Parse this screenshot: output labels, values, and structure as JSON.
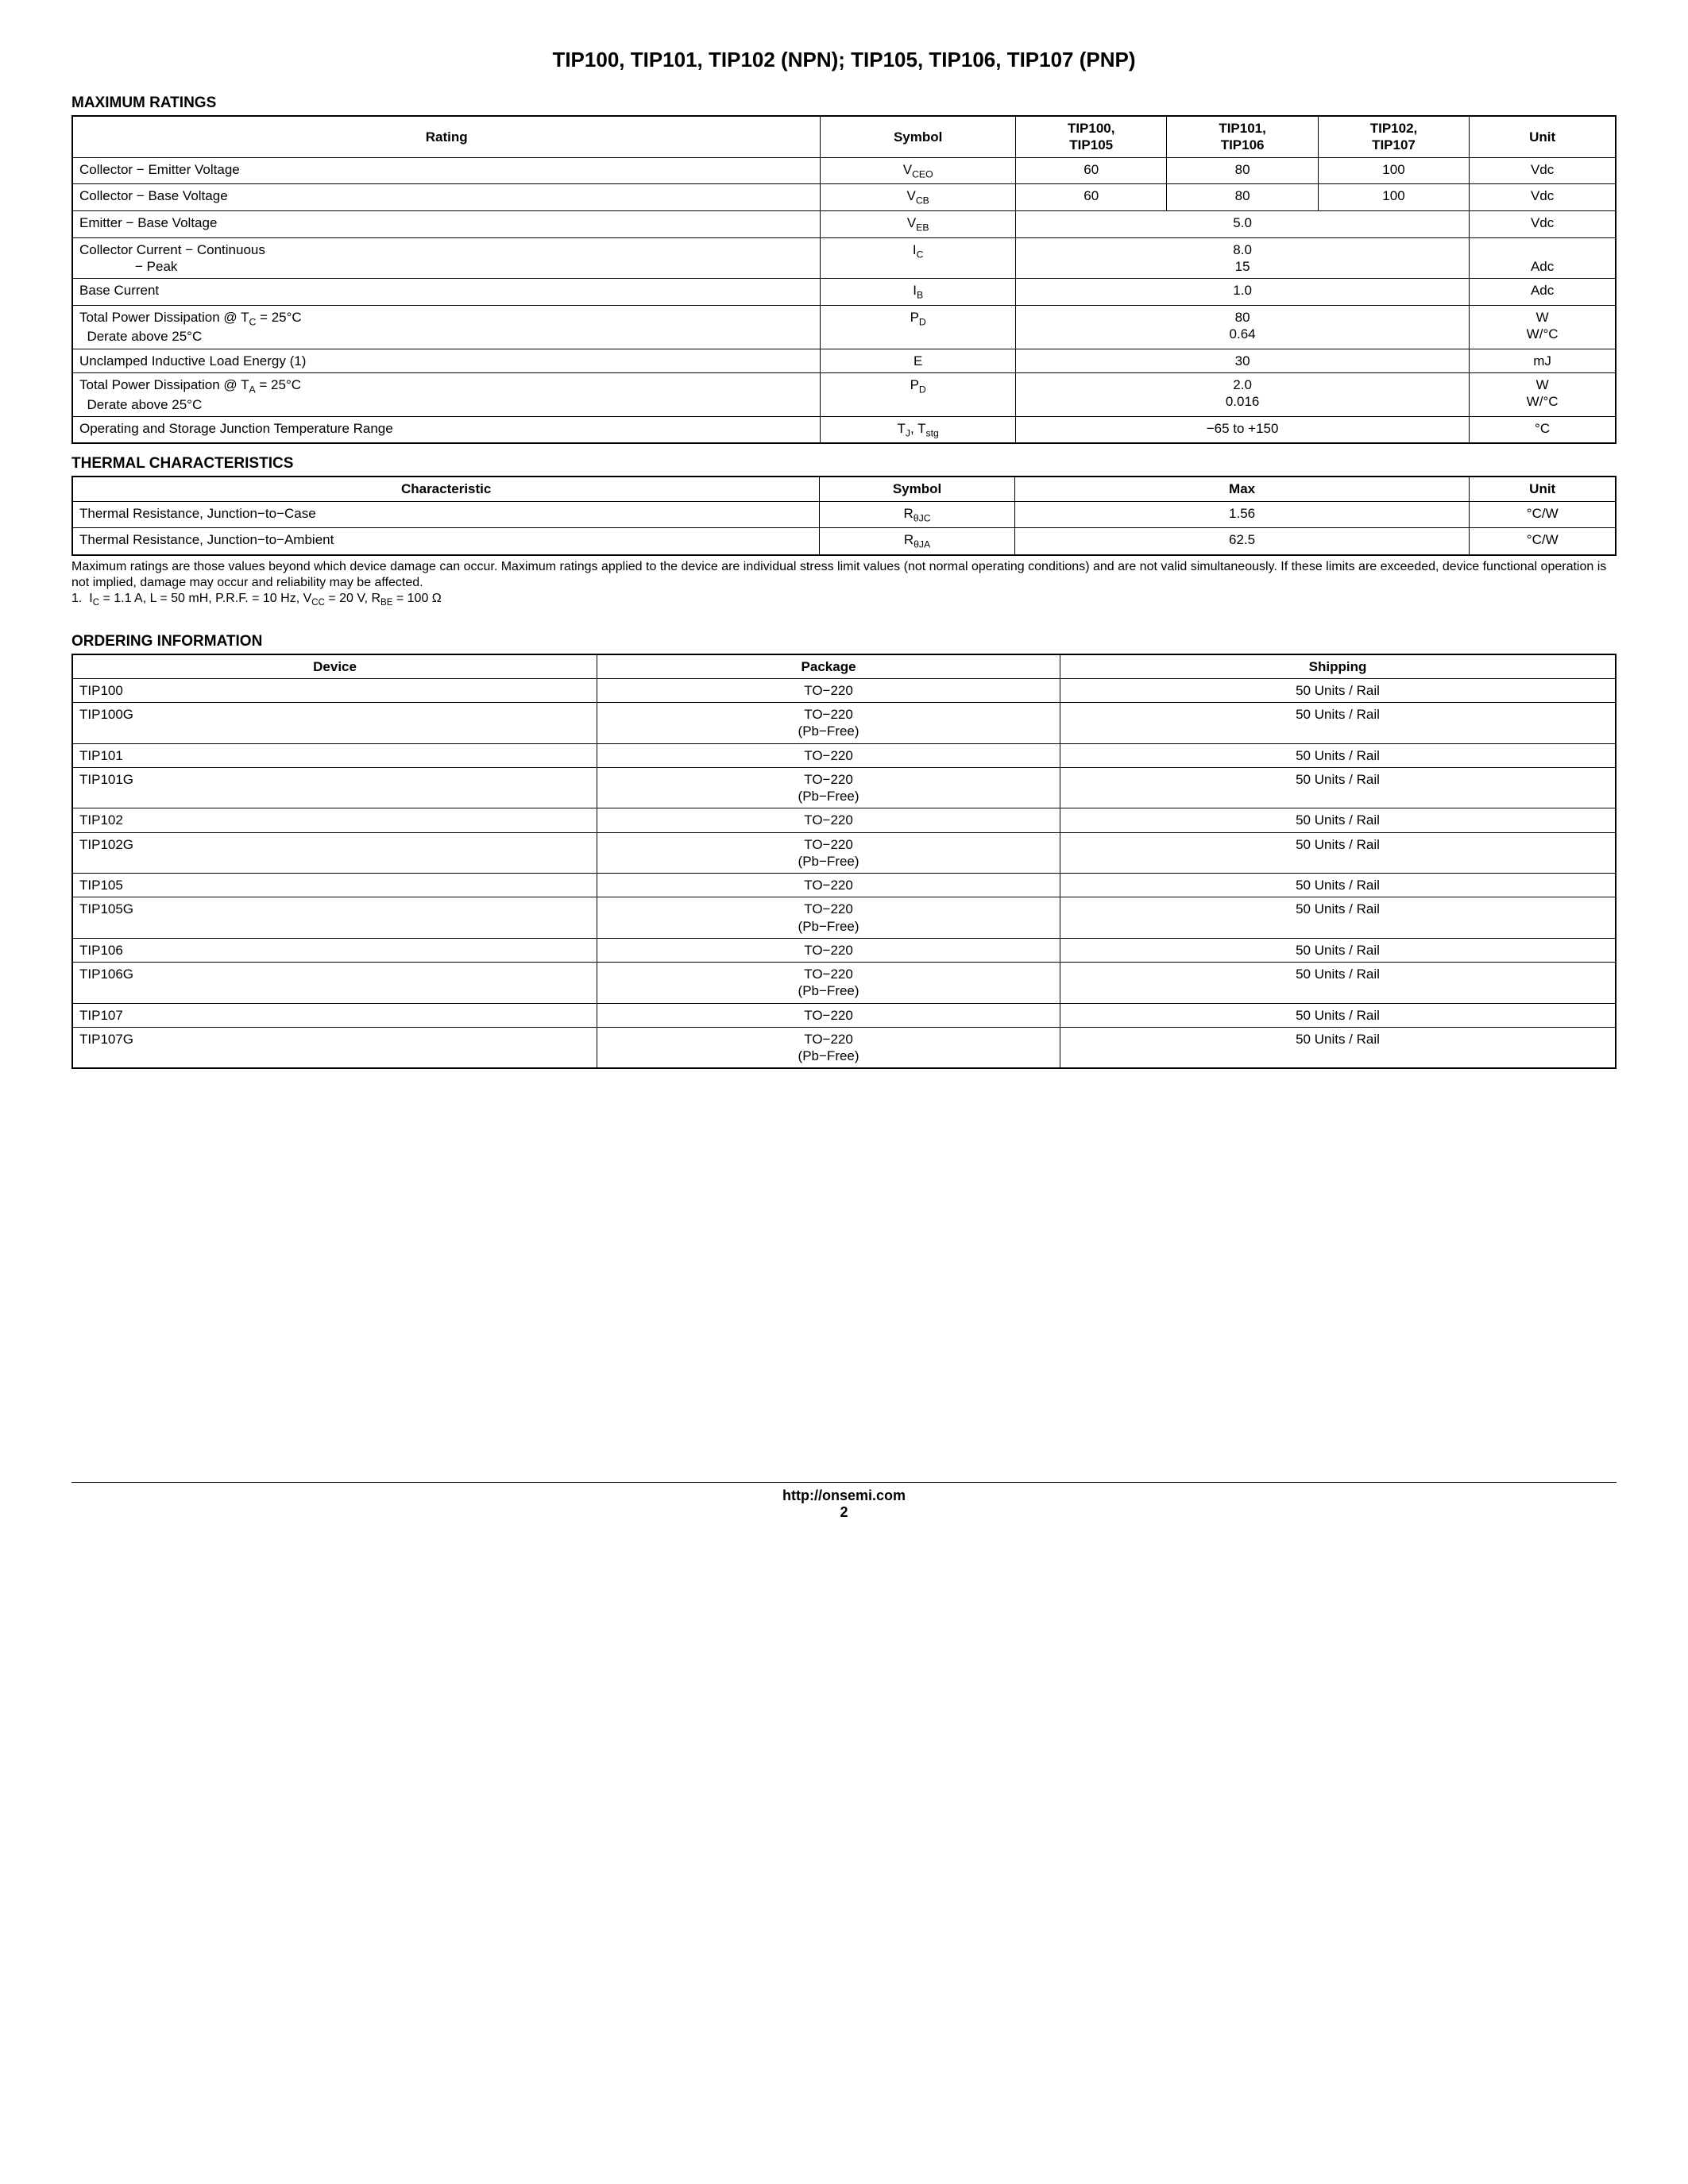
{
  "title": "TIP100, TIP101, TIP102 (NPN); TIP105, TIP106, TIP107 (PNP)",
  "sections": {
    "max_ratings": "MAXIMUM RATINGS",
    "thermal": "THERMAL CHARACTERISTICS",
    "ordering": "ORDERING INFORMATION"
  },
  "max_ratings_headers": {
    "rating": "Rating",
    "symbol": "Symbol",
    "c1a": "TIP100,",
    "c1b": "TIP105",
    "c2a": "TIP101,",
    "c2b": "TIP106",
    "c3a": "TIP102,",
    "c3b": "TIP107",
    "unit": "Unit"
  },
  "mr": {
    "r1": {
      "rating": "Collector − Emitter Voltage",
      "v1": "60",
      "v2": "80",
      "v3": "100",
      "unit": "Vdc"
    },
    "r2": {
      "rating": "Collector − Base Voltage",
      "v1": "60",
      "v2": "80",
      "v3": "100",
      "unit": "Vdc"
    },
    "r3": {
      "rating": "Emitter − Base Voltage",
      "v": "5.0",
      "unit": "Vdc"
    },
    "r4": {
      "rating_a": "Collector Current − Continuous",
      "rating_b": "− Peak",
      "va": "8.0",
      "vb": "15",
      "unit": "Adc"
    },
    "r5": {
      "rating": "Base Current",
      "v": "1.0",
      "unit": "Adc"
    },
    "r6": {
      "rating_a": "Total Power Dissipation @ T",
      "rating_a2": " = 25°C",
      "rating_b": "Derate above 25°C",
      "va": "80",
      "vb": "0.64",
      "unit_a": "W",
      "unit_b": "W/°C"
    },
    "r7": {
      "rating": "Unclamped Inductive Load Energy (1)",
      "v": "30",
      "unit": "mJ"
    },
    "r8": {
      "rating_a": "Total Power Dissipation @ T",
      "rating_a2": " = 25°C",
      "rating_b": "Derate above 25°C",
      "va": "2.0",
      "vb": "0.016",
      "unit_a": "W",
      "unit_b": "W/°C"
    },
    "r9": {
      "rating": "Operating and Storage Junction Temperature Range",
      "v": "−65 to +150",
      "unit": "°C"
    }
  },
  "thermal_headers": {
    "char": "Characteristic",
    "symbol": "Symbol",
    "max": "Max",
    "unit": "Unit"
  },
  "th": {
    "r1": {
      "char": "Thermal Resistance, Junction−to−Case",
      "max": "1.56",
      "unit": "°C/W"
    },
    "r2": {
      "char": "Thermal Resistance, Junction−to−Ambient",
      "max": "62.5",
      "unit": "°C/W"
    }
  },
  "notes": {
    "p1": "Maximum ratings are those values beyond which device damage can occur. Maximum ratings applied to the device are individual stress limit values (not normal operating conditions) and are not valid simultaneously. If these limits are exceeded, device functional operation is not implied, damage may occur and reliability may be affected.",
    "p2_pre": "1.  I",
    "p2_mid1": " = 1.1 A, L = 50 mH, P.R.F. = 10 Hz, V",
    "p2_mid2": " = 20 V, R",
    "p2_end": " = 100 Ω"
  },
  "ordering_headers": {
    "device": "Device",
    "package": "Package",
    "shipping": "Shipping"
  },
  "ord": [
    {
      "d": "TIP100",
      "p": "TO−220",
      "pf": "",
      "s": "50 Units / Rail"
    },
    {
      "d": "TIP100G",
      "p": "TO−220",
      "pf": "(Pb−Free)",
      "s": "50 Units / Rail"
    },
    {
      "d": "TIP101",
      "p": "TO−220",
      "pf": "",
      "s": "50 Units / Rail"
    },
    {
      "d": "TIP101G",
      "p": "TO−220",
      "pf": "(Pb−Free)",
      "s": "50 Units / Rail"
    },
    {
      "d": "TIP102",
      "p": "TO−220",
      "pf": "",
      "s": "50 Units / Rail"
    },
    {
      "d": "TIP102G",
      "p": "TO−220",
      "pf": "(Pb−Free)",
      "s": "50 Units / Rail"
    },
    {
      "d": "TIP105",
      "p": "TO−220",
      "pf": "",
      "s": "50 Units / Rail"
    },
    {
      "d": "TIP105G",
      "p": "TO−220",
      "pf": "(Pb−Free)",
      "s": "50 Units / Rail"
    },
    {
      "d": "TIP106",
      "p": "TO−220",
      "pf": "",
      "s": "50 Units / Rail"
    },
    {
      "d": "TIP106G",
      "p": "TO−220",
      "pf": "(Pb−Free)",
      "s": "50 Units / Rail"
    },
    {
      "d": "TIP107",
      "p": "TO−220",
      "pf": "",
      "s": "50 Units / Rail"
    },
    {
      "d": "TIP107G",
      "p": "TO−220",
      "pf": "(Pb−Free)",
      "s": "50 Units / Rail"
    }
  ],
  "footer": {
    "url": "http://onsemi.com",
    "page": "2"
  }
}
